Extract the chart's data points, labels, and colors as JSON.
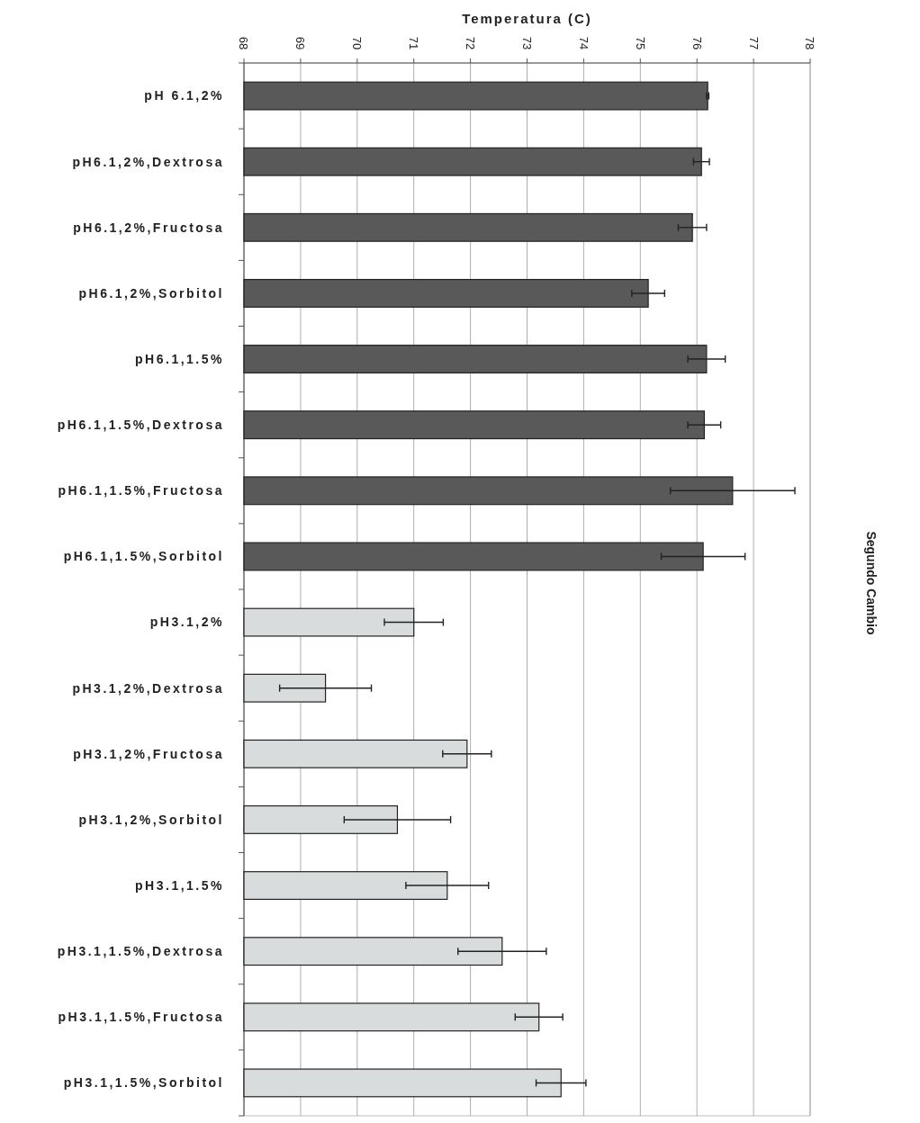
{
  "chart_data": {
    "type": "bar",
    "orientation": "horizontal",
    "xlabel": "Temperatura (C)",
    "annotations": [
      "Segundo Cambio"
    ],
    "categories": [
      "pH 6.1,2%",
      "pH6.1,2%,Dextrosa",
      "pH6.1,2%,Fructosa",
      "pH6.1,2%,Sorbitol",
      "pH6.1,1.5%",
      "pH6.1,1.5%,Dextrosa",
      "pH6.1,1.5%,Fructosa",
      "pH6.1,1.5%,Sorbitol",
      "pH3.1,2%",
      "pH3.1,2%,Dextrosa",
      "pH3.1,2%,Fructosa",
      "pH3.1,2%,Sorbitol",
      "pH3.1,1.5%",
      "pH3.1,1.5%,Dextrosa",
      "pH3.1,1.5%,Fructosa",
      "pH3.1,1.5%,Sorbitol"
    ],
    "values": [
      76.19,
      76.08,
      75.92,
      75.14,
      76.17,
      76.13,
      76.63,
      76.11,
      71.0,
      69.44,
      71.94,
      70.71,
      71.59,
      72.56,
      73.21,
      73.6
    ],
    "errors": [
      0.02,
      0.14,
      0.25,
      0.29,
      0.33,
      0.29,
      1.1,
      0.74,
      0.52,
      0.81,
      0.43,
      0.94,
      0.73,
      0.78,
      0.42,
      0.44
    ],
    "colors": [
      "#595959",
      "#595959",
      "#595959",
      "#595959",
      "#595959",
      "#595959",
      "#595959",
      "#595959",
      "#d9dcdd",
      "#d9dcdd",
      "#d9dcdd",
      "#d9dcdd",
      "#d9dcdd",
      "#d9dcdd",
      "#d9dcdd",
      "#d9dcdd"
    ],
    "xlim": [
      68,
      78
    ],
    "xticks": [
      68,
      69,
      70,
      71,
      72,
      73,
      74,
      75,
      76,
      77,
      78
    ],
    "grid": "x"
  }
}
